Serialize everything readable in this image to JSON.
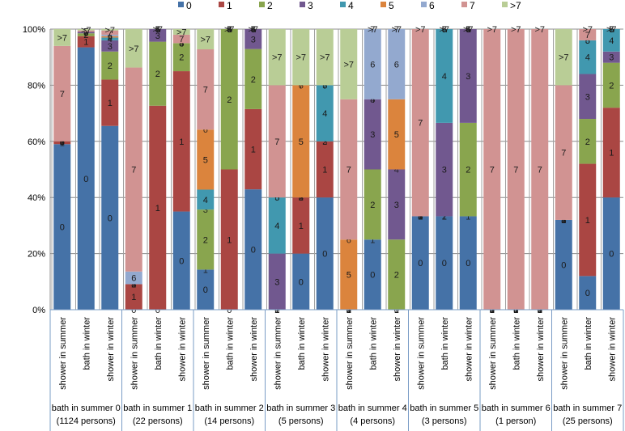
{
  "chart_data": {
    "type": "bar",
    "stacked": true,
    "percent": true,
    "title": "",
    "xlabel": "",
    "ylabel": "",
    "ylim": [
      0,
      100
    ],
    "yticks": [
      "0%",
      "20%",
      "40%",
      "60%",
      "80%",
      "100%"
    ],
    "grid": true,
    "legend_position": "top",
    "legend": [
      "0",
      "1",
      "2",
      "3",
      "4",
      "5",
      "6",
      "7",
      ">7"
    ],
    "colors": [
      "#4572A7",
      "#AA4643",
      "#89A54E",
      "#71588F",
      "#4198AF",
      "#DB843D",
      "#93A9CF",
      "#D19392",
      "#B9CD96"
    ],
    "groups": [
      {
        "label_line1": "bath in summer 0",
        "label_line2": "(1124 persons)",
        "bars": [
          {
            "category": "shower in summer",
            "values": [
              59,
              1,
              0,
              0,
              0,
              0,
              0,
              34,
              6
            ]
          },
          {
            "category": "bath in winter",
            "values": [
              93.5,
              4,
              1,
              0.5,
              0,
              0,
              0,
              0.5,
              0.5
            ]
          },
          {
            "category": "shower in winter",
            "values": [
              65.5,
              16.5,
              10,
              4,
              1,
              0.5,
              0.5,
              1.5,
              0.5
            ]
          }
        ]
      },
      {
        "label_line1": "bath in summer 1",
        "label_line2": "(22 persons)",
        "bars": [
          {
            "category": "shower in summer",
            "values": [
              0,
              9.1,
              0,
              0,
              0,
              0,
              4.5,
              72.7,
              13.7
            ]
          },
          {
            "category": "bath in winter",
            "values": [
              0,
              72.7,
              22.8,
              4.5,
              0,
              0,
              0,
              0,
              0
            ]
          },
          {
            "category": "shower in winter",
            "values": [
              35,
              50,
              10,
              0,
              0,
              0,
              0,
              3,
              2
            ]
          }
        ]
      },
      {
        "label_line1": "bath in summer 2",
        "label_line2": "(14 persons)",
        "bars": [
          {
            "category": "shower in summer",
            "values": [
              14.3,
              0,
              21.4,
              0,
              7.1,
              21.4,
              0,
              28.6,
              7.2
            ]
          },
          {
            "category": "bath in winter",
            "values": [
              0,
              50,
              50,
              0,
              0,
              0,
              0,
              0,
              0
            ]
          },
          {
            "category": "shower in winter",
            "values": [
              42.9,
              28.6,
              21.4,
              7.1,
              0,
              0,
              0,
              0,
              0
            ]
          }
        ]
      },
      {
        "label_line1": "bath in summer 3",
        "label_line2": "(5 persons)",
        "bars": [
          {
            "category": "shower in summer",
            "values": [
              0,
              0,
              0,
              20,
              20,
              0,
              0,
              40,
              20
            ]
          },
          {
            "category": "bath in winter",
            "values": [
              20,
              20,
              0,
              0,
              0,
              40,
              0,
              0,
              20
            ]
          },
          {
            "category": "shower in winter",
            "values": [
              40,
              20,
              0,
              0,
              20,
              0,
              0,
              0,
              20
            ]
          }
        ]
      },
      {
        "label_line1": "bath in summer 4",
        "label_line2": "(4 persons)",
        "bars": [
          {
            "category": "shower in summer",
            "values": [
              0,
              0,
              0,
              0,
              0,
              25,
              0,
              50,
              25
            ]
          },
          {
            "category": "bath in winter",
            "values": [
              25,
              0,
              25,
              25,
              0,
              0,
              25,
              0,
              0
            ]
          },
          {
            "category": "shower in winter",
            "values": [
              0,
              0,
              25,
              25,
              0,
              25,
              25,
              0,
              0
            ]
          }
        ]
      },
      {
        "label_line1": "bath in summer 5",
        "label_line2": "(3 persons)",
        "bars": [
          {
            "category": "shower in summer",
            "values": [
              33.3,
              0,
              0,
              0,
              0,
              0,
              0,
              66.7,
              0
            ]
          },
          {
            "category": "bath in winter",
            "values": [
              33.3,
              0,
              0,
              33.3,
              33.4,
              0,
              0,
              0,
              0
            ]
          },
          {
            "category": "shower in winter",
            "values": [
              33.3,
              0,
              33.3,
              33.4,
              0,
              0,
              0,
              0,
              0
            ]
          }
        ]
      },
      {
        "label_line1": "bath in summer 6",
        "label_line2": "(1 person)",
        "bars": [
          {
            "category": "shower in summer",
            "values": [
              0,
              0,
              0,
              0,
              0,
              0,
              0,
              100,
              0
            ]
          },
          {
            "category": "bath in winter",
            "values": [
              0,
              0,
              0,
              0,
              0,
              0,
              0,
              100,
              0
            ]
          },
          {
            "category": "shower in winter",
            "values": [
              0,
              0,
              0,
              0,
              0,
              0,
              0,
              100,
              0
            ]
          }
        ]
      },
      {
        "label_line1": "bath in summer 7",
        "label_line2": "(25 persons)",
        "bars": [
          {
            "category": "shower in summer",
            "values": [
              32,
              0,
              0,
              0,
              0,
              0,
              0,
              48,
              20
            ]
          },
          {
            "category": "bath in winter",
            "values": [
              12,
              40,
              16,
              16,
              12,
              0,
              0,
              4,
              0
            ]
          },
          {
            "category": "shower in winter",
            "values": [
              40,
              32,
              16,
              4,
              8,
              0,
              0,
              0,
              0
            ]
          }
        ]
      }
    ]
  }
}
